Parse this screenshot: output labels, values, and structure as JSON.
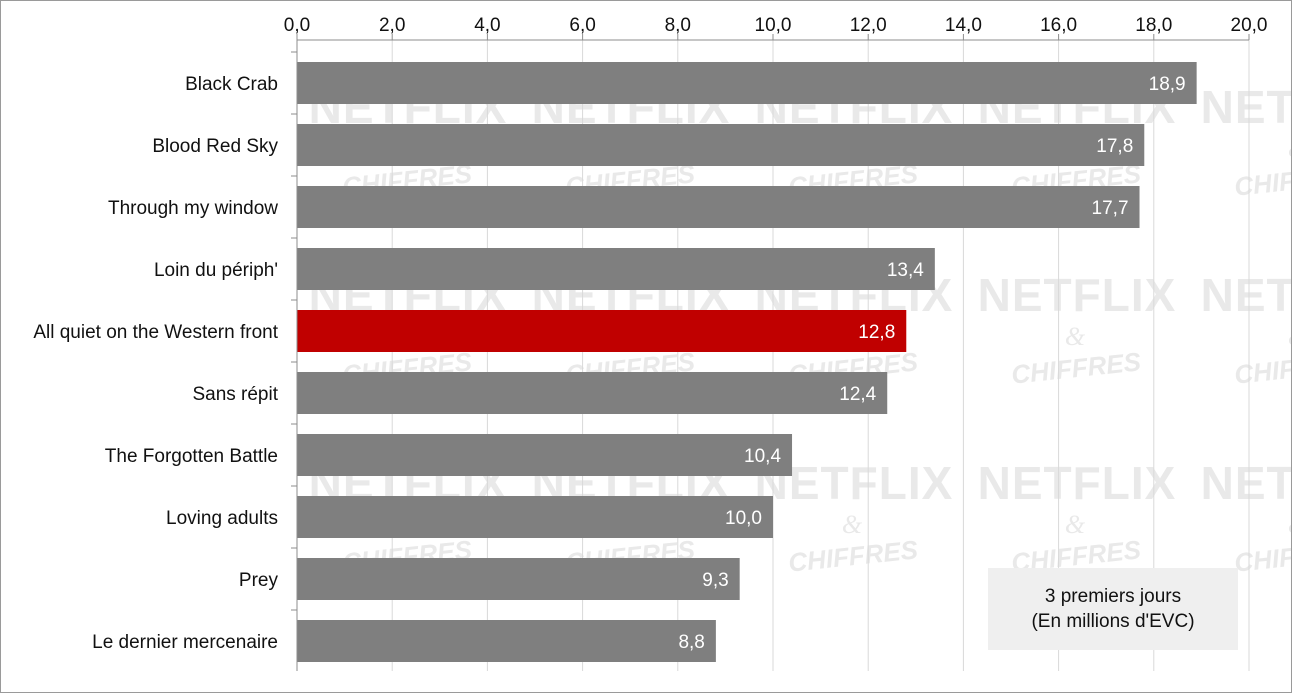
{
  "chart_data": {
    "type": "bar",
    "orientation": "horizontal",
    "categories": [
      "Black Crab",
      "Blood Red Sky",
      "Through my window",
      "Loin du périph'",
      "All quiet on the Western front",
      "Sans répit",
      "The Forgotten Battle",
      "Loving adults",
      "Prey",
      "Le dernier mercenaire"
    ],
    "values": [
      18.9,
      17.8,
      17.7,
      13.4,
      12.8,
      12.4,
      10.4,
      10.0,
      9.3,
      8.8
    ],
    "value_labels": [
      "18,9",
      "17,8",
      "17,7",
      "13,4",
      "12,8",
      "12,4",
      "10,4",
      "10,0",
      "9,3",
      "8,8"
    ],
    "highlight_index": 4,
    "xlim": [
      0,
      20
    ],
    "x_ticks": [
      "0,0",
      "2,0",
      "4,0",
      "6,0",
      "8,0",
      "10,0",
      "12,0",
      "14,0",
      "16,0",
      "18,0",
      "20,0"
    ],
    "x_axis_position": "top",
    "grid": true,
    "title": "",
    "xlabel": "",
    "ylabel": "",
    "annotation": [
      "3 premiers jours",
      "(En millions d'EVC)"
    ],
    "watermark": [
      "NETFLIX",
      "&",
      "CHIFFRES"
    ],
    "colors": {
      "bar": "#7f7f7f",
      "highlight": "#c00000",
      "grid": "#d9d9d9",
      "axis": "#8c8c8c",
      "annotation_bg": "#efefef",
      "watermark": "#e9e9e9"
    }
  }
}
